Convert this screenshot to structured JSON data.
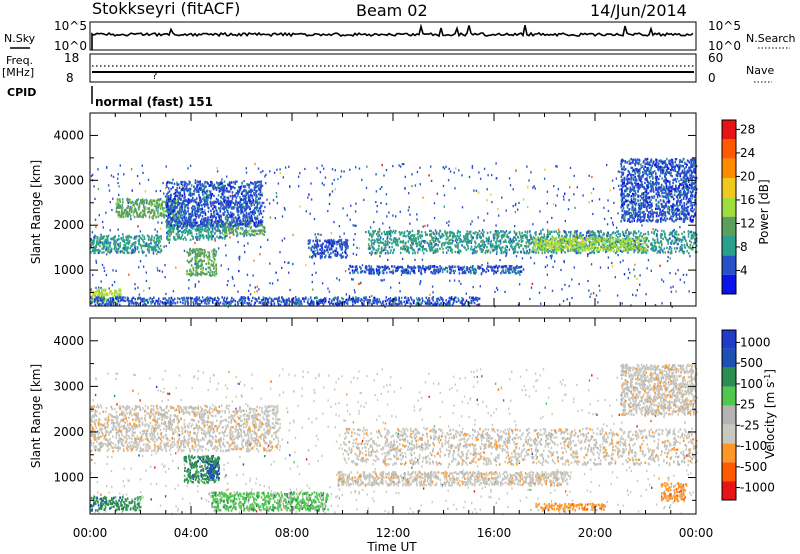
{
  "header": {
    "station": "Stokkseyri (fitACF)",
    "beam": "Beam 02",
    "date": "14/Jun/2014"
  },
  "nsky_panel": {
    "label": "N.Sky",
    "left_ticks": [
      "10^5",
      "10^0"
    ],
    "right_ticks": [
      "10^5",
      "10^0"
    ],
    "right_label": "N.Search"
  },
  "freq_panel": {
    "label_line1": "Freq.",
    "label_line2": "[MHz]",
    "left_ticks": [
      "18",
      "8"
    ],
    "right_ticks": [
      "60",
      "0"
    ],
    "right_label": "Nave"
  },
  "cpid_panel": {
    "label": "CPID",
    "value": "normal (fast) 151"
  },
  "colors": {
    "power": [
      "#0a14e6",
      "#2850c8",
      "#28a08c",
      "#5aa05a",
      "#a0dc3c",
      "#f0c81e",
      "#ff8c00",
      "#ff5a00",
      "#e61414"
    ],
    "velocity": [
      "#e61414",
      "#ff5a00",
      "#ff9628",
      "#c8c8c0",
      "#b4b4b4",
      "#50c850",
      "#2d8c50",
      "#1e50b4",
      "#1e3cc8"
    ]
  },
  "chart_data": [
    {
      "type": "heatmap",
      "variable": "Power",
      "ylabel": "Slant Range [km]",
      "yticks": [
        1000,
        2000,
        3000,
        4000
      ],
      "ylim": [
        200,
        4500
      ],
      "xlim_hours": [
        0,
        24
      ],
      "colorbar": {
        "label": "Power [dB]",
        "ticks": [
          "4",
          "8",
          "12",
          "16",
          "20",
          "24",
          "28"
        ],
        "range": [
          0,
          30
        ]
      },
      "regions": [
        {
          "t0": 0.0,
          "t1": 2.8,
          "r0": 1400,
          "r1": 1800,
          "level": 2
        },
        {
          "t0": 1.0,
          "t1": 3.6,
          "r0": 2200,
          "r1": 2600,
          "level": 3
        },
        {
          "t0": 3.0,
          "t1": 5.4,
          "r0": 1700,
          "r1": 2100,
          "level": 2
        },
        {
          "t0": 3.8,
          "t1": 5.0,
          "r0": 900,
          "r1": 1500,
          "level": 3
        },
        {
          "t0": 5.2,
          "t1": 7.0,
          "r0": 1800,
          "r1": 2100,
          "level": 3
        },
        {
          "t0": 0.0,
          "t1": 1.2,
          "r0": 300,
          "r1": 600,
          "level": 4
        },
        {
          "t0": 3.0,
          "t1": 6.8,
          "r0": 2000,
          "r1": 3000,
          "level": 1
        },
        {
          "t0": 8.6,
          "t1": 10.2,
          "r0": 1300,
          "r1": 1700,
          "level": 1
        },
        {
          "t0": 11.0,
          "t1": 24.0,
          "r0": 1400,
          "r1": 1900,
          "level": 2
        },
        {
          "t0": 10.2,
          "t1": 17.2,
          "r0": 950,
          "r1": 1120,
          "level": 1
        },
        {
          "t0": 17.5,
          "t1": 22.0,
          "r0": 1450,
          "r1": 1750,
          "level": 4
        },
        {
          "t0": 21.0,
          "t1": 24.0,
          "r0": 2100,
          "r1": 3500,
          "level": 1
        },
        {
          "t0": 0.0,
          "t1": 15.4,
          "r0": 250,
          "r1": 420,
          "level": 1
        }
      ]
    },
    {
      "type": "heatmap",
      "variable": "Velocity",
      "ylabel": "Slant Range [km]",
      "yticks": [
        1000,
        2000,
        3000,
        4000
      ],
      "ylim": [
        200,
        4500
      ],
      "xlim_hours": [
        0,
        24
      ],
      "colorbar": {
        "label": "Velocity [m s^-1]",
        "ticks": [
          "1000",
          "500",
          "100",
          "25",
          "-25",
          "-100",
          "-500",
          "-1000"
        ],
        "range": [
          -1000,
          1000
        ]
      },
      "regions": [
        {
          "t0": 0.0,
          "t1": 7.5,
          "r0": 1600,
          "r1": 2600,
          "level": 3
        },
        {
          "t0": 3.7,
          "t1": 5.1,
          "r0": 900,
          "r1": 1500,
          "level": 6
        },
        {
          "t0": 4.6,
          "t1": 5.1,
          "r0": 1000,
          "r1": 1400,
          "level": 7
        },
        {
          "t0": 0.0,
          "t1": 2.0,
          "r0": 300,
          "r1": 600,
          "level": 6
        },
        {
          "t0": 4.8,
          "t1": 9.4,
          "r0": 300,
          "r1": 700,
          "level": 5
        },
        {
          "t0": 10.0,
          "t1": 24.0,
          "r0": 1300,
          "r1": 2100,
          "level": 3
        },
        {
          "t0": 9.8,
          "t1": 19.0,
          "r0": 850,
          "r1": 1150,
          "level": 3
        },
        {
          "t0": 17.6,
          "t1": 20.4,
          "r0": 300,
          "r1": 450,
          "level": 2
        },
        {
          "t0": 22.6,
          "t1": 23.6,
          "r0": 500,
          "r1": 900,
          "level": 2
        },
        {
          "t0": 21.0,
          "t1": 24.0,
          "r0": 2400,
          "r1": 3500,
          "level": 3
        }
      ]
    }
  ],
  "x_axis": {
    "label": "Time UT",
    "ticks": [
      "00:00",
      "04:00",
      "08:00",
      "12:00",
      "16:00",
      "20:00",
      "00:00"
    ]
  }
}
